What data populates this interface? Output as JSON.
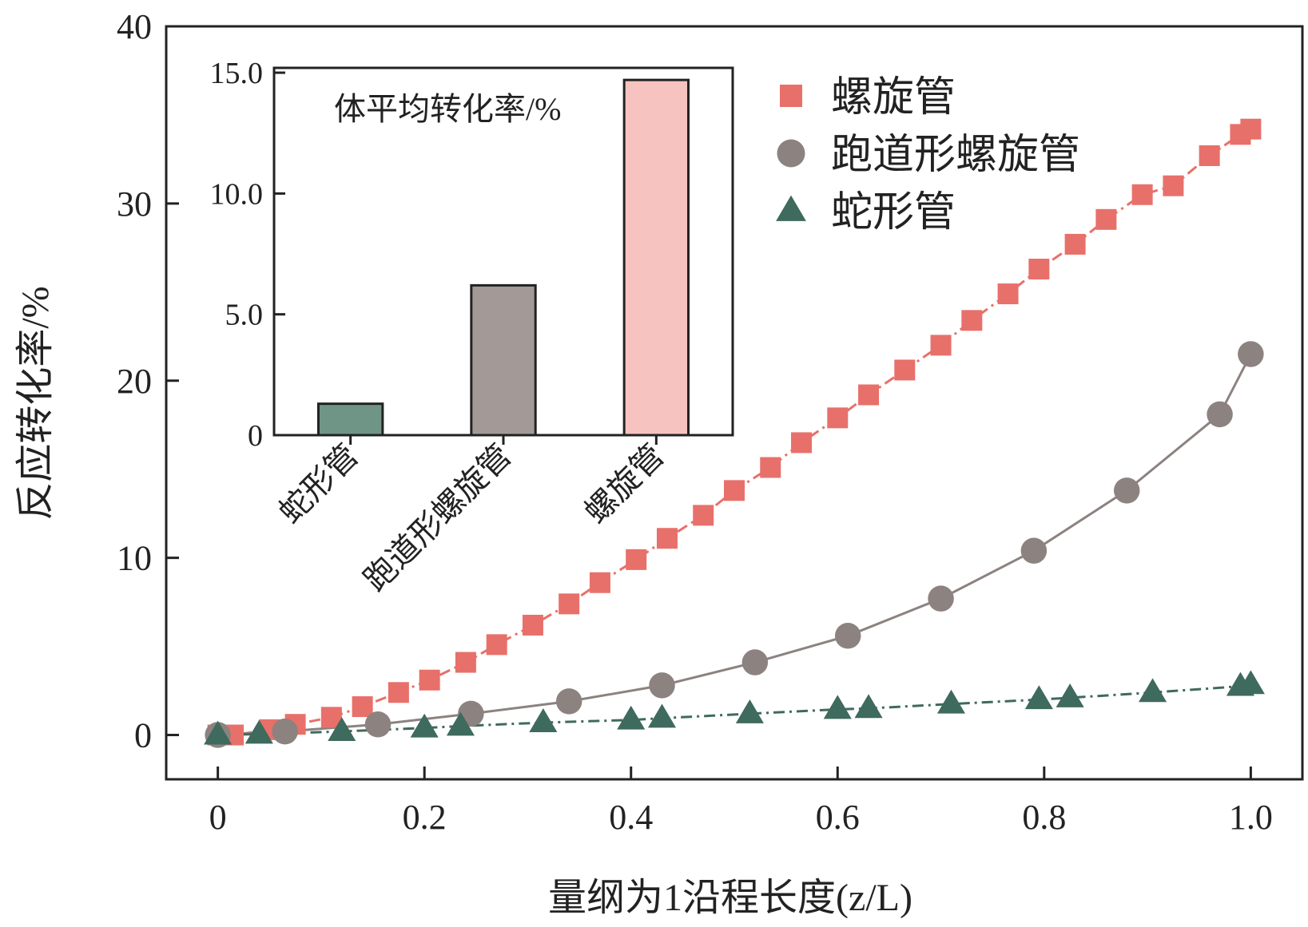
{
  "chart_data": [
    {
      "type": "scatter",
      "title": "",
      "xlabel": "量纲为1沿程长度(z/L)",
      "ylabel": "反应转化率/%",
      "xlim": [
        -0.05,
        1.05
      ],
      "ylim": [
        -2.5,
        40
      ],
      "x_ticks": [
        0,
        0.2,
        0.4,
        0.6,
        0.8,
        1.0
      ],
      "x_tick_labels": [
        "0",
        "0.2",
        "0.4",
        "0.6",
        "0.8",
        "1.0"
      ],
      "y_ticks": [
        0,
        10,
        20,
        30,
        40
      ],
      "y_tick_labels": [
        "0",
        "10",
        "20",
        "30",
        "40"
      ],
      "legend_position": "top-right",
      "series": [
        {
          "name": "螺旋管",
          "marker": "square",
          "line": "dashdot",
          "color": "#E8706A",
          "x": [
            0,
            0.015,
            0.05,
            0.075,
            0.11,
            0.14,
            0.175,
            0.205,
            0.24,
            0.27,
            0.305,
            0.34,
            0.37,
            0.405,
            0.435,
            0.47,
            0.5,
            0.535,
            0.565,
            0.6,
            0.63,
            0.665,
            0.7,
            0.73,
            0.765,
            0.795,
            0.83,
            0.86,
            0.895,
            0.925,
            0.96,
            0.99,
            1.0
          ],
          "y": [
            0,
            0.0,
            0.3,
            0.6,
            1.0,
            1.6,
            2.4,
            3.1,
            4.1,
            5.1,
            6.2,
            7.4,
            8.6,
            9.9,
            11.1,
            12.4,
            13.8,
            15.1,
            16.5,
            17.9,
            19.2,
            20.6,
            22.0,
            23.4,
            24.9,
            26.3,
            27.7,
            29.1,
            30.5,
            31.0,
            32.7,
            33.9,
            34.2
          ]
        },
        {
          "name": "跑道形螺旋管",
          "marker": "circle",
          "line": "solid",
          "color": "#8C8280",
          "x": [
            0,
            0.065,
            0.155,
            0.245,
            0.34,
            0.43,
            0.52,
            0.61,
            0.7,
            0.79,
            0.88,
            0.97,
            1.0
          ],
          "y": [
            0,
            0.2,
            0.6,
            1.2,
            1.9,
            2.8,
            4.1,
            5.6,
            7.7,
            10.4,
            13.8,
            18.1,
            21.5
          ]
        },
        {
          "name": "蛇形管",
          "marker": "triangle",
          "line": "dashdot",
          "color": "#3F6A5E",
          "x": [
            0,
            0.04,
            0.12,
            0.2,
            0.235,
            0.315,
            0.4,
            0.43,
            0.515,
            0.6,
            0.63,
            0.71,
            0.795,
            0.825,
            0.905,
            0.99,
            1.0
          ],
          "y": [
            0,
            0.05,
            0.2,
            0.4,
            0.5,
            0.7,
            0.85,
            0.95,
            1.2,
            1.45,
            1.5,
            1.75,
            2.0,
            2.1,
            2.4,
            2.75,
            2.85
          ]
        }
      ]
    },
    {
      "type": "bar",
      "title": "体平均转化率/%",
      "xlabel": "",
      "ylabel": "",
      "ylim": [
        0,
        15.2
      ],
      "y_ticks": [
        0,
        5.0,
        10.0,
        15.0
      ],
      "y_tick_labels": [
        "0",
        "5.0",
        "10.0",
        "15.0"
      ],
      "categories": [
        "蛇形管",
        "跑道形螺旋管",
        "螺旋管"
      ],
      "values": [
        1.3,
        6.2,
        14.7
      ],
      "colors": [
        "#6F9586",
        "#A39A97",
        "#F7C3C0"
      ]
    }
  ]
}
